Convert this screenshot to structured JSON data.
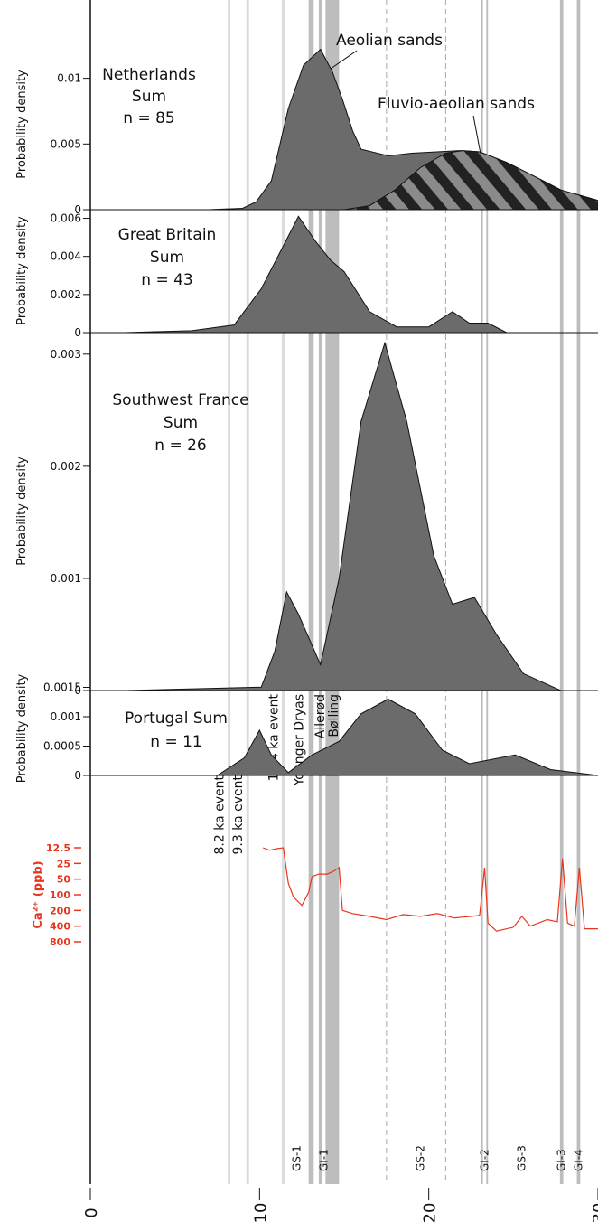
{
  "chart_data": [
    {
      "type": "area",
      "title": [
        "Netherlands",
        "Sum",
        "n = 85"
      ],
      "ylabel": "Probability density",
      "ylim": [
        0,
        0.013
      ],
      "yticks": [
        0,
        0.005,
        0.01
      ],
      "annotations": [
        "Aeolian sands",
        "Fluvio-aeolian sands"
      ],
      "series": [
        {
          "color": "#6b6b6b",
          "x": [
            2,
            7,
            9,
            9.8,
            10.7,
            11.7,
            12.6,
            13.6,
            14.3,
            14.9,
            15.5,
            16,
            17.6,
            19,
            21.9,
            23,
            24.6,
            26.3,
            27.8,
            30
          ],
          "values": [
            0,
            0,
            0.0001,
            0.0006,
            0.0022,
            0.0077,
            0.011,
            0.0122,
            0.0105,
            0.0084,
            0.006,
            0.0046,
            0.0041,
            0.0043,
            0.0045,
            0.0044,
            0.0036,
            0.0025,
            0.0015,
            0.0007
          ]
        },
        {
          "color": "#222222",
          "x": [
            15,
            16.5,
            18,
            19.5,
            21,
            22,
            23,
            24.6,
            26.3,
            27.8,
            30
          ],
          "values": [
            0,
            0.0003,
            0.0015,
            0.0032,
            0.0043,
            0.0045,
            0.0044,
            0.0036,
            0.0025,
            0.0015,
            0.0007
          ]
        }
      ]
    },
    {
      "type": "area",
      "title": [
        "Great Britain",
        "Sum",
        "n = 43"
      ],
      "ylabel": "Probability density",
      "ylim": [
        0,
        0.0065
      ],
      "yticks": [
        0,
        0.002,
        0.004,
        0.006
      ],
      "series": [
        {
          "color": "#6b6b6b",
          "x": [
            2,
            6,
            8.5,
            10.1,
            11.2,
            12.3,
            13.3,
            14.2,
            15,
            16.5,
            18.1,
            20,
            21.4,
            22.4,
            23.5,
            24.6
          ],
          "values": [
            0,
            0.0001,
            0.0004,
            0.0023,
            0.0042,
            0.0061,
            0.0048,
            0.0038,
            0.0032,
            0.0011,
            0.0003,
            0.0003,
            0.0011,
            0.0005,
            0.0005,
            0
          ]
        }
      ]
    },
    {
      "type": "area",
      "title": [
        "Southwest France",
        "Sum",
        "n = 26"
      ],
      "ylabel": "Probability density",
      "ylim": [
        0,
        0.0032
      ],
      "yticks": [
        0,
        0.001,
        0.002,
        0.003
      ],
      "series": [
        {
          "color": "#6b6b6b",
          "x": [
            2.1,
            10.1,
            10.9,
            11.6,
            12.3,
            13.6,
            14.7,
            16,
            17.4,
            18.7,
            20.3,
            21.4,
            22.7,
            24,
            25.6,
            27.8,
            30
          ],
          "values": [
            0,
            3e-05,
            0.00035,
            0.00088,
            0.00068,
            0.00023,
            0.001,
            0.0024,
            0.0031,
            0.0024,
            0.0012,
            0.00077,
            0.00083,
            0.0005,
            0.00015,
            0,
            0
          ]
        }
      ]
    },
    {
      "type": "area",
      "title": [
        "Portugal Sum",
        "n = 11"
      ],
      "ylabel": "Probability density",
      "ylim": [
        0,
        0.0016
      ],
      "yticks": [
        0,
        0.0005,
        0.001,
        0.0015
      ],
      "series": [
        {
          "color": "#6b6b6b",
          "x": [
            7.5,
            9.1,
            10,
            10.7,
            11.7,
            13.1,
            14.7,
            16,
            17.6,
            19.2,
            20.8,
            22.4,
            25.1,
            27.2,
            30
          ],
          "values": [
            0,
            0.0003,
            0.00077,
            0.00035,
            5e-05,
            0.00035,
            0.00058,
            0.00105,
            0.0013,
            0.00105,
            0.00043,
            0.0002,
            0.00035,
            0.0001,
            0
          ]
        }
      ]
    },
    {
      "type": "line",
      "ylabel": "Ca²⁺ (ppb)",
      "ylog": true,
      "yinverted": true,
      "ylim": [
        12.5,
        800
      ],
      "yticks": [
        12.5,
        25,
        50,
        100,
        200,
        400,
        800
      ],
      "xlim": [
        0,
        30
      ],
      "xticks": [
        0,
        10,
        20,
        30
      ],
      "series": [
        {
          "color": "#e8361e",
          "x": [
            10.2,
            10.6,
            11,
            11.4,
            11.7,
            12,
            12.5,
            12.9,
            13.1,
            13.5,
            14,
            14.4,
            14.7,
            14.9,
            15.5,
            16.5,
            17.5,
            18.5,
            19.5,
            20.5,
            21.5,
            22.5,
            23,
            23.3,
            23.5,
            24,
            25,
            25.5,
            26,
            27,
            27.6,
            27.9,
            28.2,
            28.6,
            28.9,
            29.2,
            30
          ],
          "values": [
            12.5,
            14,
            13,
            12.5,
            60,
            110,
            160,
            90,
            45,
            40,
            40,
            35,
            30,
            200,
            230,
            260,
            300,
            240,
            260,
            230,
            280,
            260,
            250,
            30,
            350,
            500,
            420,
            260,
            400,
            300,
            330,
            20,
            350,
            400,
            30,
            450,
            450
          ]
        }
      ],
      "events": [
        {
          "x": 8.2,
          "label": "8.2 ka event"
        },
        {
          "x": 9.3,
          "label": "9.3  ka event"
        },
        {
          "x": 11.4,
          "label": "11.4 ka event"
        },
        {
          "x": 12.9,
          "label": "Younger Dryas"
        },
        {
          "x": 13.6,
          "label": "Allerød"
        },
        {
          "x": 14.4,
          "label": "Bølling"
        }
      ],
      "bands": [
        [
          12.9,
          13.2
        ],
        [
          13.5,
          13.7
        ],
        [
          13.9,
          14.7
        ],
        [
          23.1,
          23.2
        ],
        [
          23.4,
          23.5
        ],
        [
          27.75,
          27.95
        ],
        [
          28.75,
          28.95
        ]
      ],
      "dashed": [
        17.5,
        21
      ],
      "stages": [
        {
          "x": 12.2,
          "label": "GS-1"
        },
        {
          "x": 13.8,
          "label": "GI-1"
        },
        {
          "x": 19.5,
          "label": "GS-2"
        },
        {
          "x": 23.3,
          "label": "GI-2"
        },
        {
          "x": 25.5,
          "label": "GS-3"
        },
        {
          "x": 27.85,
          "label": "GI-3"
        },
        {
          "x": 28.85,
          "label": "GI-4"
        }
      ]
    }
  ]
}
